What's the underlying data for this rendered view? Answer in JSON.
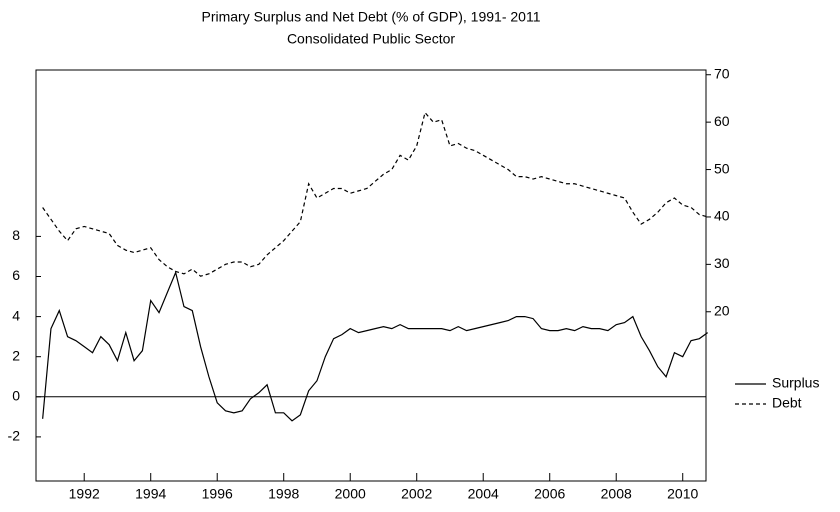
{
  "chart_data": {
    "type": "line",
    "title": "Primary Surplus and Net Debt (% of GDP), 1991- 2011",
    "subtitle": "Consolidated Public Sector",
    "x": [
      1990.75,
      1991,
      1991.25,
      1991.5,
      1991.75,
      1992,
      1992.25,
      1992.5,
      1992.75,
      1993,
      1993.25,
      1993.5,
      1993.75,
      1994,
      1994.25,
      1994.5,
      1994.75,
      1995,
      1995.25,
      1995.5,
      1995.75,
      1996,
      1996.25,
      1996.5,
      1996.75,
      1997,
      1997.25,
      1997.5,
      1997.75,
      1998,
      1998.25,
      1998.5,
      1998.75,
      1999,
      1999.25,
      1999.5,
      1999.75,
      2000,
      2000.25,
      2000.5,
      2000.75,
      2001,
      2001.25,
      2001.5,
      2001.75,
      2002,
      2002.25,
      2002.5,
      2002.75,
      2003,
      2003.25,
      2003.5,
      2003.75,
      2004,
      2004.25,
      2004.5,
      2004.75,
      2005,
      2005.25,
      2005.5,
      2005.75,
      2006,
      2006.25,
      2006.5,
      2006.75,
      2007,
      2007.25,
      2007.5,
      2007.75,
      2008,
      2008.25,
      2008.5,
      2008.75,
      2009,
      2009.25,
      2009.5,
      2009.75,
      2010,
      2010.25,
      2010.5,
      2010.75
    ],
    "series": [
      {
        "name": "Surplus",
        "color": "#000000",
        "line_style": "solid",
        "axis": "y",
        "values": [
          -1.1,
          3.4,
          4.3,
          3.0,
          2.8,
          2.5,
          2.2,
          3.0,
          2.6,
          1.8,
          3.2,
          1.8,
          2.3,
          4.8,
          4.2,
          5.2,
          6.2,
          4.5,
          4.3,
          2.5,
          1.0,
          -0.3,
          -0.7,
          -0.8,
          -0.7,
          -0.1,
          0.2,
          0.6,
          -0.8,
          -0.8,
          -1.2,
          -0.9,
          0.3,
          0.8,
          2.0,
          2.9,
          3.1,
          3.4,
          3.2,
          3.3,
          3.4,
          3.5,
          3.4,
          3.6,
          3.4,
          3.4,
          3.4,
          3.4,
          3.4,
          3.3,
          3.5,
          3.3,
          3.4,
          3.5,
          3.6,
          3.7,
          3.8,
          4.0,
          4.0,
          3.9,
          3.4,
          3.3,
          3.3,
          3.4,
          3.3,
          3.5,
          3.4,
          3.4,
          3.3,
          3.6,
          3.7,
          4.0,
          3.0,
          2.3,
          1.5,
          1.0,
          2.2,
          2.0,
          2.8,
          2.9,
          3.2
        ]
      },
      {
        "name": "Debt",
        "color": "#000000",
        "line_style": "dashed",
        "axis": "y2",
        "values": [
          42,
          39.5,
          37,
          35,
          37.5,
          38,
          37.5,
          37,
          36.5,
          34,
          33,
          32.5,
          33,
          33.5,
          31,
          29.5,
          28.5,
          28,
          29,
          27.5,
          28,
          29,
          30,
          30.5,
          30.5,
          29.5,
          30,
          32,
          33.5,
          35,
          37,
          39,
          47,
          44,
          45,
          46,
          46,
          45,
          45.5,
          46,
          47.5,
          49,
          50,
          53,
          52,
          55,
          62,
          60,
          60.5,
          55,
          55.5,
          54.5,
          54,
          53,
          52,
          51,
          50,
          48.5,
          48.5,
          48,
          48.5,
          48,
          47.5,
          47,
          47,
          46.5,
          46,
          45.5,
          45,
          44.5,
          44,
          41,
          38.5,
          39.5,
          41,
          43,
          44,
          42.5,
          42,
          40.5,
          40
        ]
      }
    ],
    "xlim": [
      1990.55,
      2010.7
    ],
    "xticks": [
      1992,
      1994,
      1996,
      1998,
      2000,
      2002,
      2004,
      2006,
      2008,
      2010
    ],
    "ylim": [
      -4.2,
      16.3
    ],
    "yticks": [
      -2,
      0,
      2,
      4,
      6,
      8
    ],
    "y2lim": [
      -15.7,
      71
    ],
    "y2ticks": [
      20,
      30,
      40,
      50,
      60,
      70
    ],
    "zero_line": true,
    "legend": "right"
  }
}
